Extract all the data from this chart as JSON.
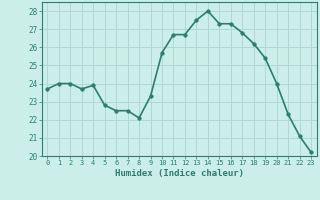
{
  "x": [
    0,
    1,
    2,
    3,
    4,
    5,
    6,
    7,
    8,
    9,
    10,
    11,
    12,
    13,
    14,
    15,
    16,
    17,
    18,
    19,
    20,
    21,
    22,
    23
  ],
  "y": [
    23.7,
    24.0,
    24.0,
    23.7,
    23.9,
    22.8,
    22.5,
    22.5,
    22.1,
    23.3,
    25.7,
    26.7,
    26.7,
    27.5,
    28.0,
    27.3,
    27.3,
    26.8,
    26.2,
    25.4,
    24.0,
    22.3,
    21.1,
    20.2
  ],
  "line_color": "#2d7d6e",
  "background_color": "#cceee8",
  "grid_color": "#b0d8d2",
  "xlabel": "Humidex (Indice chaleur)",
  "ylim": [
    20,
    28.5
  ],
  "xlim": [
    -0.5,
    23.5
  ],
  "yticks": [
    20,
    21,
    22,
    23,
    24,
    25,
    26,
    27,
    28
  ],
  "xticks": [
    0,
    1,
    2,
    3,
    4,
    5,
    6,
    7,
    8,
    9,
    10,
    11,
    12,
    13,
    14,
    15,
    16,
    17,
    18,
    19,
    20,
    21,
    22,
    23
  ],
  "tick_color": "#2d7d6e",
  "label_color": "#2d7d6e",
  "marker_size": 2.5,
  "line_width": 1.2
}
